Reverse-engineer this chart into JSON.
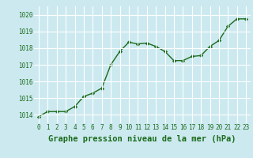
{
  "x": [
    0,
    1,
    2,
    3,
    4,
    5,
    6,
    7,
    8,
    9,
    10,
    11,
    12,
    13,
    14,
    15,
    16,
    17,
    18,
    19,
    20,
    21,
    22,
    23
  ],
  "y": [
    1013.9,
    1014.2,
    1014.2,
    1014.2,
    1014.5,
    1015.1,
    1015.3,
    1015.6,
    1017.0,
    1017.8,
    1018.35,
    1018.25,
    1018.3,
    1018.1,
    1017.8,
    1017.25,
    1017.25,
    1017.5,
    1017.55,
    1018.1,
    1018.45,
    1019.3,
    1019.75,
    1019.75
  ],
  "line_color": "#1a6b1a",
  "marker": "D",
  "marker_size": 2.2,
  "line_width": 1.0,
  "xlabel": "Graphe pression niveau de la mer (hPa)",
  "xlabel_fontsize": 7.5,
  "ylim": [
    1013.5,
    1020.5
  ],
  "yticks": [
    1014,
    1015,
    1016,
    1017,
    1018,
    1019,
    1020
  ],
  "xticks": [
    0,
    1,
    2,
    3,
    4,
    5,
    6,
    7,
    8,
    9,
    10,
    11,
    12,
    13,
    14,
    15,
    16,
    17,
    18,
    19,
    20,
    21,
    22,
    23
  ],
  "background_color": "#cce9f0",
  "grid_color": "#ffffff",
  "tick_color": "#1a6b1a",
  "xlabel_color": "#1a6b1a",
  "tick_label_fontsize": 5.5,
  "xlim": [
    -0.5,
    23.5
  ]
}
